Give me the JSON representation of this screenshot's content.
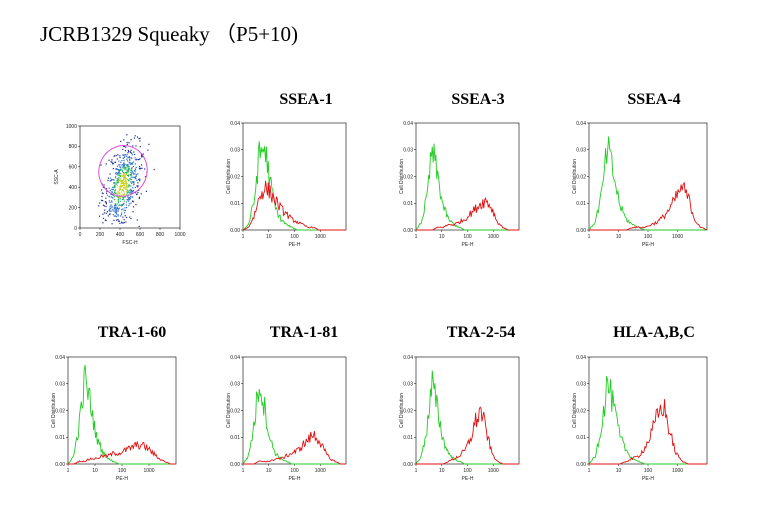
{
  "page": {
    "title": "JCRB1329  Squeaky  （P5+10)"
  },
  "scatter": {
    "xlabel": "FSC-H",
    "ylabel": "SSC-A",
    "xticks": [
      "0",
      "200",
      "400",
      "600",
      "800",
      "1000"
    ],
    "yticks": [
      "0",
      "200",
      "400",
      "600",
      "800",
      "1000"
    ],
    "gate_color": "#d94fd9",
    "dot_colors": [
      "#1a2a9a",
      "#2f6fd0",
      "#20b060",
      "#c8d020"
    ]
  },
  "histogram_axes": {
    "xlabel": "PE-H",
    "ylabel": "Cell Distribution",
    "xticks": [
      "1",
      "10",
      "100",
      "1000"
    ],
    "yticks": [
      "0.00",
      "0.01",
      "0.02",
      "0.03",
      "0.04"
    ]
  },
  "colors": {
    "control": "#22cc22",
    "stained": "#e01010"
  },
  "chart_data": [
    {
      "type": "scatter",
      "title": "",
      "xlabel": "FSC-H",
      "ylabel": "SSC-A",
      "xlim": [
        0,
        1000
      ],
      "ylim": [
        0,
        1000
      ],
      "gate": {
        "shape": "ellipse",
        "center": [
          430,
          560
        ],
        "rx": 240,
        "ry": 480,
        "tilt_deg": 20
      },
      "cloud": {
        "center": [
          420,
          420
        ],
        "spread": [
          90,
          200
        ],
        "points": 650
      },
      "grid": false
    },
    {
      "type": "histogram",
      "title": "SSEA-1",
      "xlabel": "PE-H",
      "ylabel": "Cell Distribution",
      "x_scale": "log",
      "xlim": [
        1,
        10000
      ],
      "ylim": [
        0,
        0.04
      ],
      "series": [
        {
          "name": "",
          "color": "control",
          "values": [
            0,
            0.002,
            0.01,
            0.028,
            0.031,
            0.018,
            0.008,
            0.004,
            0.002,
            0.001,
            0,
            0,
            0,
            0,
            0,
            0,
            0,
            0,
            0,
            0
          ]
        },
        {
          "name": "",
          "color": "stained",
          "values": [
            0,
            0.001,
            0.005,
            0.012,
            0.016,
            0.014,
            0.011,
            0.008,
            0.006,
            0.004,
            0.003,
            0.002,
            0.001,
            0.001,
            0,
            0,
            0,
            0,
            0,
            0
          ]
        }
      ]
    },
    {
      "type": "histogram",
      "title": "SSEA-3",
      "xlabel": "PE-H",
      "ylabel": "Cell Distribution",
      "x_scale": "log",
      "xlim": [
        1,
        10000
      ],
      "ylim": [
        0,
        0.04
      ],
      "series": [
        {
          "name": "",
          "color": "control",
          "values": [
            0,
            0.003,
            0.012,
            0.03,
            0.02,
            0.009,
            0.004,
            0.002,
            0.001,
            0,
            0,
            0,
            0,
            0,
            0,
            0,
            0,
            0,
            0,
            0
          ]
        },
        {
          "name": "",
          "color": "stained",
          "values": [
            0,
            0,
            0,
            0,
            0.001,
            0.001,
            0.002,
            0.002,
            0.003,
            0.004,
            0.006,
            0.008,
            0.01,
            0.011,
            0.008,
            0.003,
            0.001,
            0,
            0,
            0
          ]
        }
      ]
    },
    {
      "type": "histogram",
      "title": "SSEA-4",
      "xlabel": "PE-H",
      "ylabel": "Cell Distribution",
      "x_scale": "log",
      "xlim": [
        1,
        10000
      ],
      "ylim": [
        0,
        0.04
      ],
      "series": [
        {
          "name": "",
          "color": "control",
          "values": [
            0,
            0.003,
            0.013,
            0.031,
            0.02,
            0.009,
            0.004,
            0.002,
            0.001,
            0,
            0,
            0,
            0,
            0,
            0,
            0,
            0,
            0,
            0,
            0
          ]
        },
        {
          "name": "",
          "color": "stained",
          "values": [
            0,
            0,
            0,
            0,
            0,
            0,
            0,
            0.001,
            0.001,
            0.001,
            0.002,
            0.003,
            0.005,
            0.008,
            0.012,
            0.016,
            0.012,
            0.004,
            0.001,
            0
          ]
        }
      ]
    },
    {
      "type": "histogram",
      "title": "TRA-1-60",
      "xlabel": "PE-H",
      "ylabel": "Cell Distribution",
      "x_scale": "log",
      "xlim": [
        1,
        10000
      ],
      "ylim": [
        0,
        0.04
      ],
      "series": [
        {
          "name": "",
          "color": "control",
          "values": [
            0,
            0.003,
            0.015,
            0.032,
            0.022,
            0.01,
            0.005,
            0.002,
            0.001,
            0,
            0,
            0,
            0,
            0,
            0,
            0,
            0,
            0,
            0,
            0
          ]
        },
        {
          "name": "",
          "color": "stained",
          "values": [
            0,
            0,
            0.001,
            0.001,
            0.002,
            0.002,
            0.003,
            0.003,
            0.004,
            0.004,
            0.005,
            0.006,
            0.007,
            0.007,
            0.006,
            0.004,
            0.002,
            0.001,
            0,
            0
          ]
        }
      ]
    },
    {
      "type": "histogram",
      "title": "TRA-1-81",
      "xlabel": "PE-H",
      "ylabel": "Cell Distribution",
      "x_scale": "log",
      "xlim": [
        1,
        10000
      ],
      "ylim": [
        0,
        0.04
      ],
      "series": [
        {
          "name": "",
          "color": "control",
          "values": [
            0,
            0.003,
            0.014,
            0.031,
            0.021,
            0.009,
            0.004,
            0.002,
            0.001,
            0,
            0,
            0,
            0,
            0,
            0,
            0,
            0,
            0,
            0,
            0
          ]
        },
        {
          "name": "",
          "color": "stained",
          "values": [
            0,
            0,
            0,
            0.001,
            0.001,
            0.001,
            0.002,
            0.002,
            0.003,
            0.004,
            0.005,
            0.007,
            0.009,
            0.011,
            0.009,
            0.005,
            0.002,
            0.001,
            0,
            0
          ]
        }
      ]
    },
    {
      "type": "histogram",
      "title": "TRA-2-54",
      "xlabel": "PE-H",
      "ylabel": "Cell Distribution",
      "x_scale": "log",
      "xlim": [
        1,
        10000
      ],
      "ylim": [
        0,
        0.04
      ],
      "series": [
        {
          "name": "",
          "color": "control",
          "values": [
            0,
            0.003,
            0.013,
            0.03,
            0.02,
            0.009,
            0.004,
            0.002,
            0.001,
            0,
            0,
            0,
            0,
            0,
            0,
            0,
            0,
            0,
            0,
            0
          ]
        },
        {
          "name": "",
          "color": "stained",
          "values": [
            0,
            0,
            0,
            0,
            0,
            0,
            0.001,
            0.002,
            0.003,
            0.005,
            0.009,
            0.016,
            0.02,
            0.012,
            0.004,
            0.001,
            0,
            0,
            0,
            0
          ]
        }
      ]
    },
    {
      "type": "histogram",
      "title": "HLA-A,B,C",
      "xlabel": "PE-H",
      "ylabel": "Cell Distribution",
      "x_scale": "log",
      "xlim": [
        1,
        10000
      ],
      "ylim": [
        0,
        0.04
      ],
      "series": [
        {
          "name": "",
          "color": "control",
          "values": [
            0,
            0.003,
            0.014,
            0.031,
            0.021,
            0.01,
            0.005,
            0.002,
            0.001,
            0,
            0,
            0,
            0,
            0,
            0,
            0,
            0,
            0,
            0,
            0
          ]
        },
        {
          "name": "",
          "color": "stained",
          "values": [
            0,
            0,
            0,
            0,
            0,
            0,
            0.001,
            0.002,
            0.003,
            0.006,
            0.011,
            0.018,
            0.022,
            0.012,
            0.004,
            0.001,
            0,
            0,
            0,
            0
          ]
        }
      ]
    }
  ]
}
